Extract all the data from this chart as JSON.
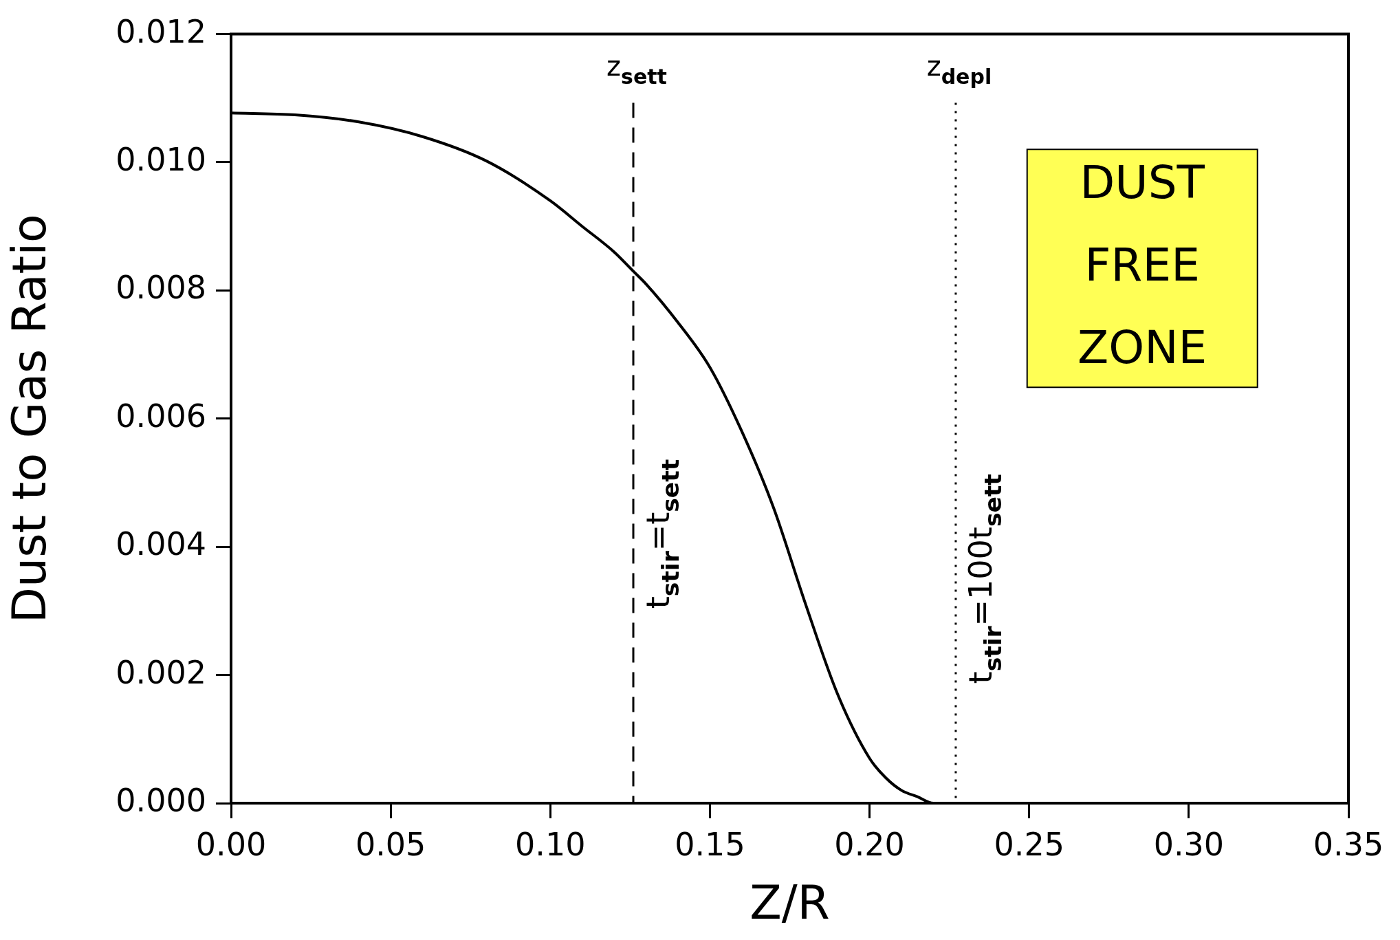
{
  "chart_data": {
    "type": "line",
    "xlabel": "Z/R",
    "ylabel": "Dust to Gas Ratio",
    "x": [
      0,
      0.02,
      0.04,
      0.06,
      0.08,
      0.1,
      0.11,
      0.12,
      0.126,
      0.13,
      0.14,
      0.15,
      0.16,
      0.17,
      0.18,
      0.19,
      0.2,
      0.205,
      0.21,
      0.215,
      0.22,
      0.227
    ],
    "series": [
      {
        "color": "#000000",
        "values": [
          0.01077,
          0.01074,
          0.01063,
          0.0104,
          0.01002,
          0.0094,
          0.009,
          0.0086,
          0.0083,
          0.0081,
          0.0075,
          0.0068,
          0.0058,
          0.0046,
          0.0031,
          0.0017,
          0.0007,
          0.0004,
          0.0002,
          0.0001,
          0,
          0
        ]
      }
    ],
    "xlim": [
      0,
      0.35
    ],
    "xticks": [
      {
        "value": 0,
        "label": "0.00"
      },
      {
        "value": 0.05,
        "label": "0.05"
      },
      {
        "value": 0.1,
        "label": "0.10"
      },
      {
        "value": 0.15,
        "label": "0.15"
      },
      {
        "value": 0.2,
        "label": "0.20"
      },
      {
        "value": 0.25,
        "label": "0.25"
      },
      {
        "value": 0.3,
        "label": "0.30"
      },
      {
        "value": 0.35,
        "label": "0.35"
      }
    ],
    "ylim": [
      0,
      0.012
    ],
    "yticks": [
      {
        "value": 0,
        "label": "0.000"
      },
      {
        "value": 0.002,
        "label": "0.002"
      },
      {
        "value": 0.004,
        "label": "0.004"
      },
      {
        "value": 0.006,
        "label": "0.006"
      },
      {
        "value": 0.008,
        "label": "0.008"
      },
      {
        "value": 0.01,
        "label": "0.010"
      },
      {
        "value": 0.012,
        "label": "0.012"
      }
    ],
    "ref_lines": [
      {
        "axis": "x",
        "value": 0.126,
        "label": "z$_{sett}$",
        "line_style": "dashed",
        "color": "#000000"
      },
      {
        "axis": "x",
        "value": 0.227,
        "label": "z$_{depl}$",
        "line_style": "dotted",
        "color": "#000000"
      }
    ],
    "annotations": [
      {
        "text": "t$_{stir}$=t$_{sett}$",
        "x": 0.126,
        "y": 0.0042
      },
      {
        "text": "t$_{stir}$=100t$_{sett}$",
        "x": 0.227,
        "y": 0.0035
      },
      "DUST FREE ZONE"
    ],
    "grid": false,
    "legend": false,
    "marker": "none",
    "line_style": "solid"
  }
}
